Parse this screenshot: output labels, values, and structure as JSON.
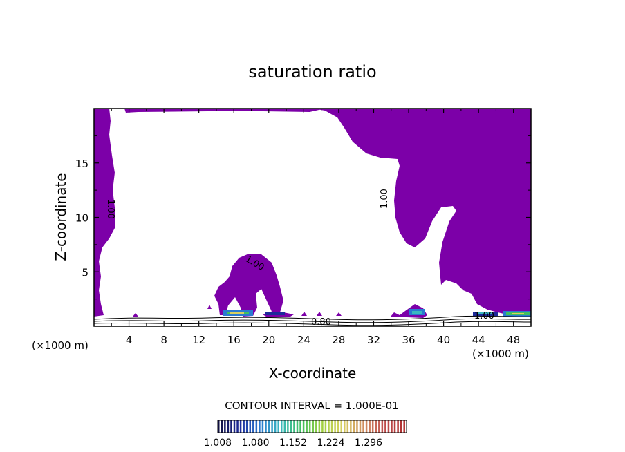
{
  "chart_data": {
    "type": "contour",
    "title": "saturation ratio",
    "xlabel": "X-coordinate",
    "ylabel": "Z-coordinate",
    "x_unit_label": "(×1000 m)",
    "y_unit_label": "(×1000 m)",
    "xlim": [
      0,
      50
    ],
    "ylim": [
      0,
      20
    ],
    "x_ticks": [
      4,
      8,
      12,
      16,
      20,
      24,
      28,
      32,
      36,
      40,
      44,
      48
    ],
    "y_ticks": [
      5,
      10,
      15
    ],
    "contour_interval_label": "CONTOUR INTERVAL = 1.000E-01",
    "contour_labels": [
      "1.00",
      "1.00",
      "1.00",
      "1.00",
      "0.80"
    ],
    "colorbar": {
      "ticks": [
        "1.008",
        "1.080",
        "1.152",
        "1.224",
        "1.296"
      ],
      "colors": [
        "#101040",
        "#1e2a9a",
        "#2a7ad0",
        "#3ab8c0",
        "#40c060",
        "#a0d040",
        "#d8d060",
        "#d09060",
        "#c05050",
        "#b03030"
      ]
    },
    "fill_color": "#7c00a8",
    "fill_meaning": "saturation ratio ≥ 1.00"
  }
}
